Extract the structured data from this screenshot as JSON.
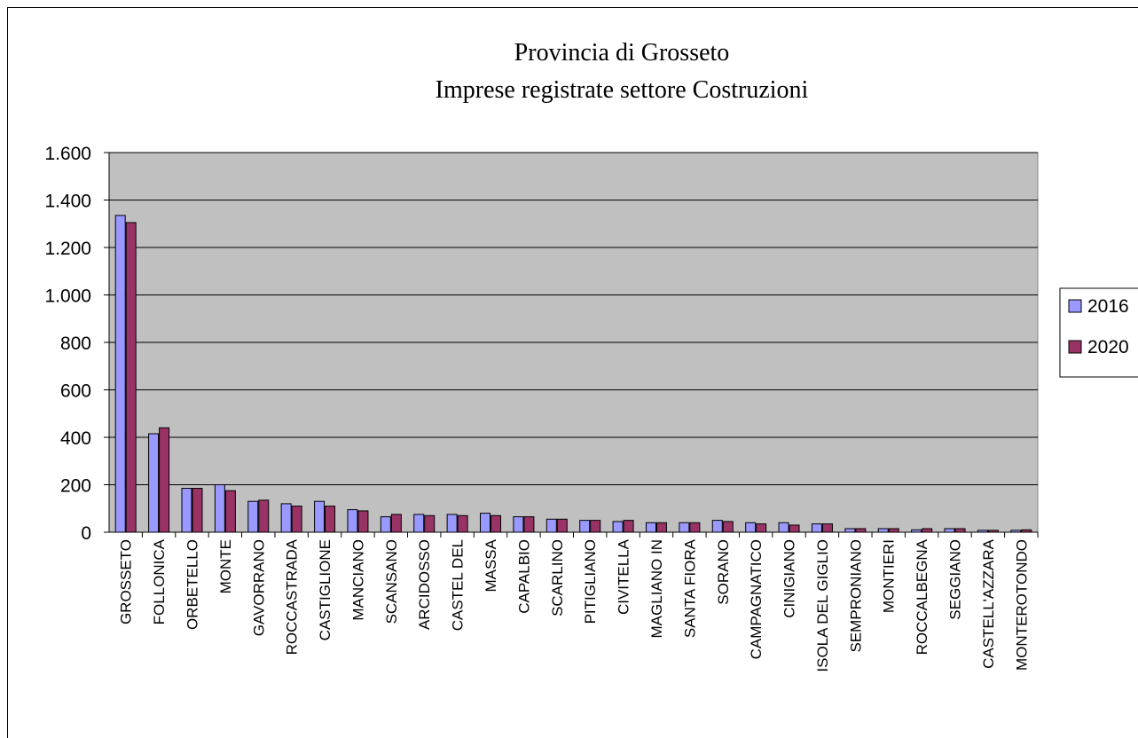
{
  "chart_data": {
    "type": "bar",
    "title": "Provincia di Grosseto",
    "subtitle": "Imprese registrate settore Costruzioni",
    "xlabel": "",
    "ylabel": "",
    "ylim": [
      0,
      1600
    ],
    "yticks": [
      0,
      200,
      400,
      600,
      800,
      1000,
      1200,
      1400,
      1600
    ],
    "ytick_labels": [
      "0",
      "200",
      "400",
      "600",
      "800",
      "1.000",
      "1.200",
      "1.400",
      "1.600"
    ],
    "grid": true,
    "legend_position": "right",
    "categories": [
      "GROSSETO",
      "FOLLONICA",
      "ORBETELLO",
      "MONTE",
      "GAVORRANO",
      "ROCCASTRADA",
      "CASTIGLIONE",
      "MANCIANO",
      "SCANSANO",
      "ARCIDOSSO",
      "CASTEL DEL",
      "MASSA",
      "CAPALBIO",
      "SCARLINO",
      "PITIGLIANO",
      "CIVITELLA",
      "MAGLIANO IN",
      "SANTA FIORA",
      "SORANO",
      "CAMPAGNATICO",
      "CINIGIANO",
      "ISOLA DEL GIGLIO",
      "SEMPRONIANO",
      "MONTIERI",
      "ROCCALBEGNA",
      "SEGGIANO",
      "CASTELL'AZZARA",
      "MONTEROTONDO"
    ],
    "series": [
      {
        "name": "2016",
        "color": "#9999ff",
        "values": [
          1335,
          415,
          185,
          200,
          130,
          120,
          130,
          95,
          65,
          75,
          75,
          80,
          65,
          55,
          50,
          45,
          40,
          40,
          50,
          40,
          40,
          35,
          15,
          15,
          10,
          15,
          8,
          8
        ]
      },
      {
        "name": "2020",
        "color": "#993366",
        "values": [
          1305,
          440,
          185,
          175,
          135,
          110,
          110,
          90,
          75,
          70,
          70,
          70,
          65,
          55,
          50,
          50,
          40,
          40,
          45,
          35,
          30,
          35,
          15,
          15,
          15,
          15,
          8,
          10
        ]
      }
    ],
    "plot_area_color": "#c0c0c0"
  }
}
